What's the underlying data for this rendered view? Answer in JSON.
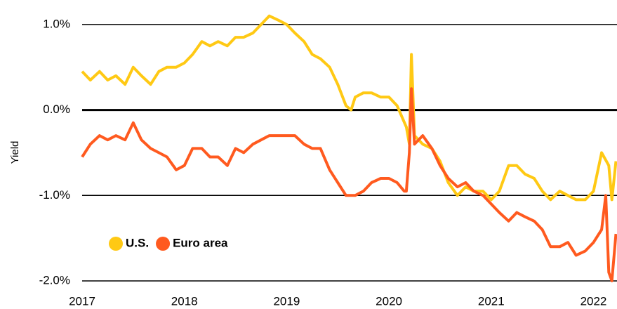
{
  "chart_data": {
    "type": "line",
    "y_label": "Yield",
    "xlim": [
      2017,
      2022.23
    ],
    "xticks": [
      2017,
      2018,
      2019,
      2020,
      2021,
      2022
    ],
    "ylim": [
      -2,
      1.28
    ],
    "yticks": [
      {
        "value": -2,
        "label": "-2.0%"
      },
      {
        "value": -1,
        "label": "-1.0%"
      },
      {
        "value": 0,
        "label": "0.0%"
      },
      {
        "value": 1,
        "label": "1.0%"
      }
    ],
    "grid": true,
    "legend": "lower left",
    "series": [
      {
        "name": "U.S.",
        "color": "#ffc914",
        "x": [
          2017.0,
          2017.08,
          2017.17,
          2017.25,
          2017.33,
          2017.42,
          2017.5,
          2017.58,
          2017.67,
          2017.75,
          2017.83,
          2017.92,
          2018.0,
          2018.08,
          2018.17,
          2018.25,
          2018.33,
          2018.42,
          2018.5,
          2018.58,
          2018.67,
          2018.75,
          2018.83,
          2018.92,
          2019.0,
          2019.08,
          2019.17,
          2019.25,
          2019.33,
          2019.42,
          2019.5,
          2019.58,
          2019.63,
          2019.67,
          2019.75,
          2019.83,
          2019.92,
          2020.0,
          2020.08,
          2020.17,
          2020.2,
          2020.22,
          2020.25,
          2020.33,
          2020.42,
          2020.5,
          2020.58,
          2020.67,
          2020.75,
          2020.83,
          2020.92,
          2021.0,
          2021.08,
          2021.17,
          2021.25,
          2021.33,
          2021.42,
          2021.5,
          2021.58,
          2021.67,
          2021.75,
          2021.83,
          2021.92,
          2022.0,
          2022.08,
          2022.15,
          2022.18,
          2022.22
        ],
        "values": [
          0.45,
          0.35,
          0.45,
          0.35,
          0.4,
          0.3,
          0.5,
          0.4,
          0.3,
          0.45,
          0.5,
          0.5,
          0.55,
          0.65,
          0.8,
          0.75,
          0.8,
          0.75,
          0.85,
          0.85,
          0.9,
          1.0,
          1.1,
          1.05,
          1.0,
          0.9,
          0.8,
          0.65,
          0.6,
          0.5,
          0.3,
          0.05,
          0.0,
          0.15,
          0.2,
          0.2,
          0.15,
          0.15,
          0.05,
          -0.2,
          -0.4,
          0.65,
          -0.3,
          -0.4,
          -0.45,
          -0.6,
          -0.85,
          -1.0,
          -0.9,
          -0.95,
          -0.95,
          -1.05,
          -0.95,
          -0.65,
          -0.65,
          -0.75,
          -0.8,
          -0.95,
          -1.05,
          -0.95,
          -1.0,
          -1.05,
          -1.05,
          -0.95,
          -0.5,
          -0.65,
          -1.05,
          -0.6
        ]
      },
      {
        "name": "Euro area",
        "color": "#ff5a1f",
        "x": [
          2017.0,
          2017.08,
          2017.17,
          2017.25,
          2017.33,
          2017.42,
          2017.5,
          2017.58,
          2017.67,
          2017.75,
          2017.83,
          2017.92,
          2018.0,
          2018.08,
          2018.17,
          2018.25,
          2018.33,
          2018.42,
          2018.5,
          2018.58,
          2018.67,
          2018.75,
          2018.83,
          2018.92,
          2019.0,
          2019.08,
          2019.17,
          2019.25,
          2019.33,
          2019.42,
          2019.5,
          2019.58,
          2019.67,
          2019.75,
          2019.83,
          2019.92,
          2020.0,
          2020.08,
          2020.15,
          2020.17,
          2020.2,
          2020.22,
          2020.25,
          2020.33,
          2020.42,
          2020.5,
          2020.58,
          2020.67,
          2020.75,
          2020.83,
          2020.92,
          2021.0,
          2021.08,
          2021.17,
          2021.25,
          2021.33,
          2021.42,
          2021.5,
          2021.58,
          2021.67,
          2021.75,
          2021.83,
          2021.92,
          2022.0,
          2022.08,
          2022.12,
          2022.15,
          2022.18,
          2022.22
        ],
        "values": [
          -0.55,
          -0.4,
          -0.3,
          -0.35,
          -0.3,
          -0.35,
          -0.15,
          -0.35,
          -0.45,
          -0.5,
          -0.55,
          -0.7,
          -0.65,
          -0.45,
          -0.45,
          -0.55,
          -0.55,
          -0.65,
          -0.45,
          -0.5,
          -0.4,
          -0.35,
          -0.3,
          -0.3,
          -0.3,
          -0.3,
          -0.4,
          -0.45,
          -0.45,
          -0.7,
          -0.85,
          -1.0,
          -1.0,
          -0.95,
          -0.85,
          -0.8,
          -0.8,
          -0.85,
          -0.95,
          -0.95,
          -0.5,
          0.25,
          -0.4,
          -0.3,
          -0.45,
          -0.65,
          -0.8,
          -0.9,
          -0.85,
          -0.95,
          -1.0,
          -1.1,
          -1.2,
          -1.3,
          -1.2,
          -1.25,
          -1.3,
          -1.4,
          -1.6,
          -1.6,
          -1.55,
          -1.7,
          -1.65,
          -1.55,
          -1.4,
          -1.0,
          -1.9,
          -2.0,
          -1.45
        ]
      }
    ]
  }
}
